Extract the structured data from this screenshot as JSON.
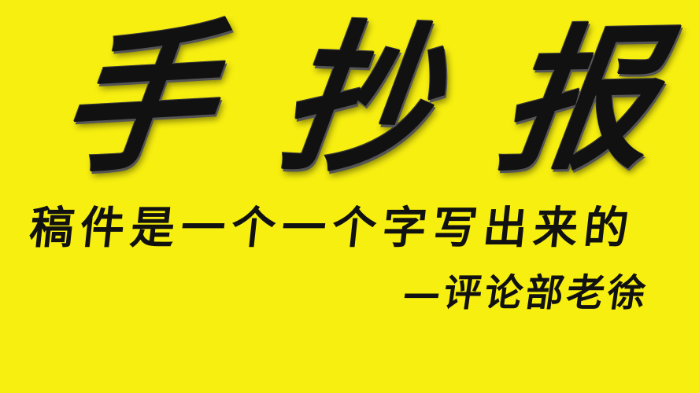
{
  "headline": {
    "chars": [
      "手",
      "抄",
      "报"
    ]
  },
  "subline": {
    "text": "稿件是一个一个字写出来的"
  },
  "signature": {
    "text": "—评论部老徐"
  },
  "colors": {
    "background": "#f7ef10",
    "ink": "#111111"
  }
}
